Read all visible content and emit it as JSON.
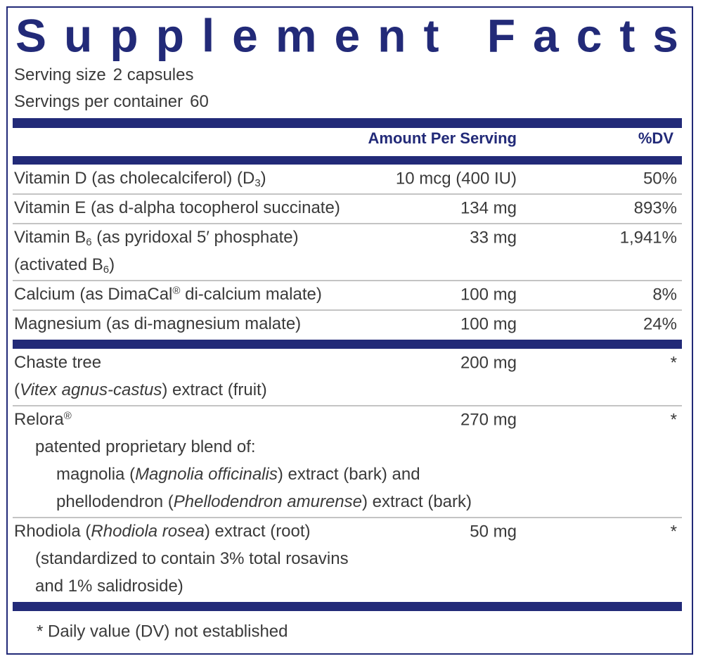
{
  "title": "Supplement Facts",
  "serving_size": {
    "label": "Serving size",
    "value": "2 capsules"
  },
  "servings_per_container": {
    "label": "Servings per container",
    "value": 60
  },
  "header": {
    "amount": "Amount Per Serving",
    "dv": "%DV"
  },
  "sections": [
    [
      {
        "name": [
          [
            "Vitamin D (as cholecalciferol) (D",
            {
              "text": "3",
              "style": "sub"
            },
            ")"
          ]
        ],
        "amount": "10 mcg (400 IU)",
        "dv": "50%"
      },
      {
        "name": [
          [
            "Vitamin E (as d-alpha tocopherol succinate)"
          ]
        ],
        "amount": "134 mg",
        "dv": "893%"
      },
      {
        "name": [
          [
            "Vitamin B",
            {
              "text": "6",
              "style": "sub"
            },
            " (as pyridoxal 5′ phosphate)"
          ],
          [
            "(activated B",
            {
              "text": "6",
              "style": "sub"
            },
            ")"
          ]
        ],
        "amount": "33 mg",
        "dv": "1,941%"
      },
      {
        "name": [
          [
            "Calcium (as DimaCal",
            {
              "text": "®",
              "style": "sup"
            },
            " di-calcium malate)"
          ]
        ],
        "amount": "100 mg",
        "dv": "8%"
      },
      {
        "name": [
          [
            "Magnesium (as di-magnesium malate)"
          ]
        ],
        "amount": "100 mg",
        "dv": "24%"
      }
    ],
    [
      {
        "name": [
          [
            "Chaste tree"
          ],
          [
            "(",
            {
              "text": "Vitex agnus-castus",
              "style": "italic"
            },
            ") extract (fruit)"
          ]
        ],
        "amount": "200 mg",
        "dv": "*"
      },
      {
        "name": [
          [
            "Relora",
            {
              "text": "®",
              "style": "sup"
            }
          ],
          [
            "patented proprietary blend of:"
          ],
          [
            "magnolia (",
            {
              "text": "Magnolia officinalis",
              "style": "italic"
            },
            ") extract (bark) and"
          ],
          [
            "phellodendron (",
            {
              "text": "Phellodendron amurense",
              "style": "italic"
            },
            ") extract (bark)"
          ]
        ],
        "amount": "270 mg",
        "dv": "*"
      },
      {
        "name": [
          [
            "Rhodiola (",
            {
              "text": "Rhodiola rosea",
              "style": "italic"
            },
            ") extract (root)"
          ],
          [
            "(standardized to contain 3% total rosavins"
          ],
          [
            "and 1% salidroside)"
          ]
        ],
        "amount": "50 mg",
        "dv": "*"
      }
    ]
  ],
  "footnote": "* Daily value (DV) not established"
}
